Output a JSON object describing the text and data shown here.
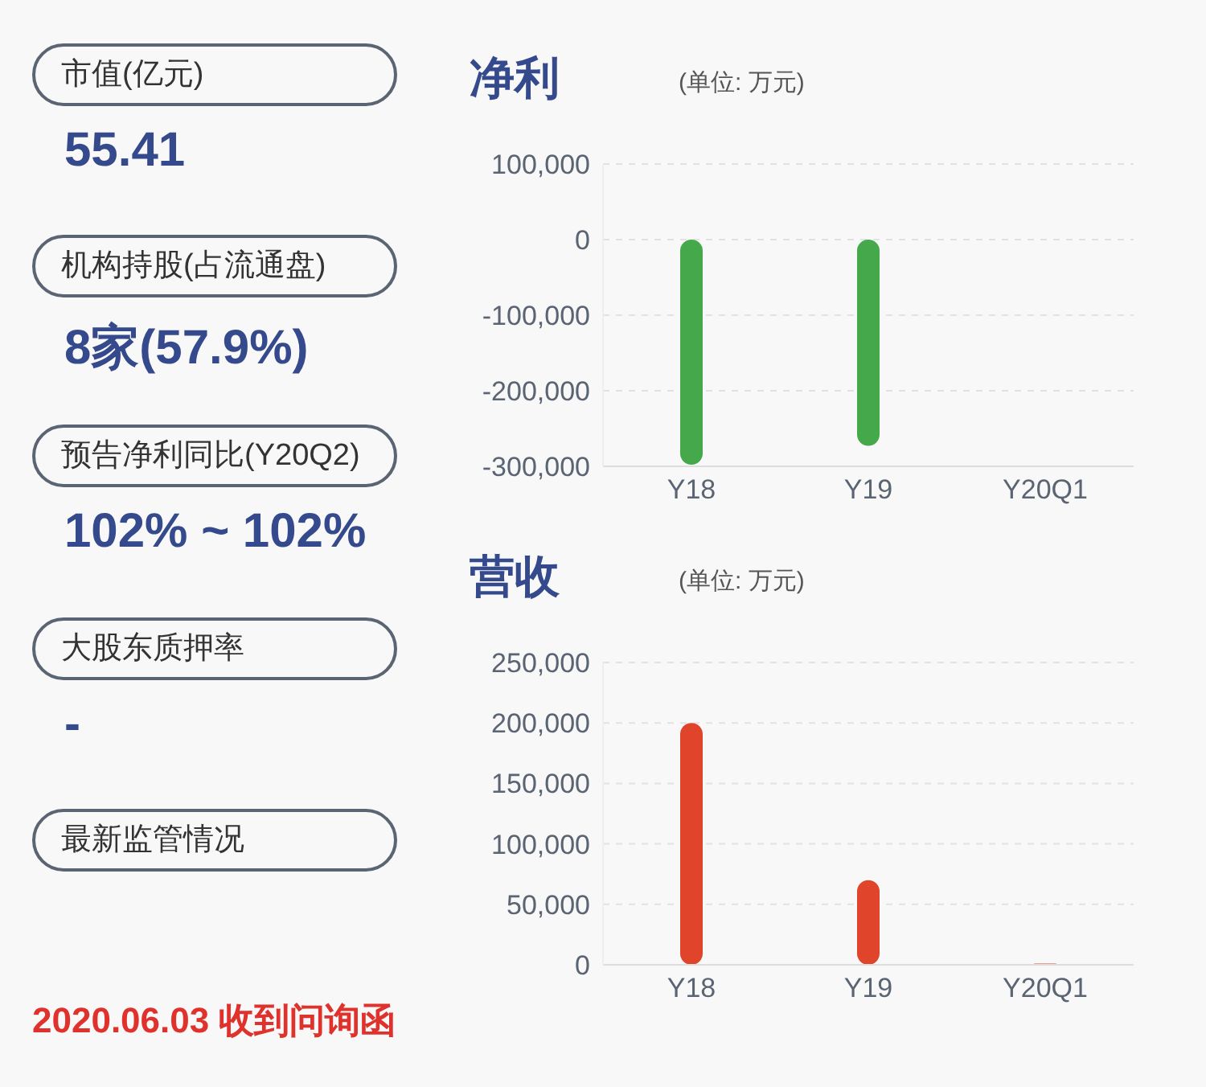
{
  "chart_data": [
    {
      "type": "other",
      "annotations": [
        "市值(亿元)",
        "55.41",
        "机构持股(占流通盘)",
        "8家(57.9%)",
        "预告净利同比(Y20Q2)",
        "102% ~ 102%",
        "大股东质押率",
        "-",
        "最新监管情况",
        "2020.06.03 收到问询函"
      ]
    },
    {
      "type": "bar",
      "title": "净利",
      "subtitle": "(单位: 万元)",
      "categories": [
        "Y18",
        "Y19",
        "Y20Q1"
      ],
      "values": [
        -298000,
        -273000,
        null
      ],
      "color": "#45a84a",
      "ylim": [
        -300000,
        100000
      ],
      "yticks": [
        {
          "value": -300000,
          "label": "-300,000"
        },
        {
          "value": -200000,
          "label": "-200,000"
        },
        {
          "value": -100000,
          "label": "-100,000"
        },
        0,
        {
          "value": 100000,
          "label": "100,000"
        }
      ],
      "grid": "y",
      "legend": false
    },
    {
      "type": "bar",
      "title": "营收",
      "subtitle": "(单位: 万元)",
      "categories": [
        "Y18",
        "Y19",
        "Y20Q1"
      ],
      "values": [
        200000,
        70000,
        1000
      ],
      "color": "#e0452c",
      "ylim": [
        0,
        250000
      ],
      "yticks": [
        0,
        {
          "value": 50000,
          "label": "50,000"
        },
        {
          "value": 100000,
          "label": "100,000"
        },
        {
          "value": 150000,
          "label": "150,000"
        },
        {
          "value": 200000,
          "label": "200,000"
        },
        {
          "value": 250000,
          "label": "250,000"
        }
      ],
      "grid": "y",
      "legend": false
    }
  ]
}
